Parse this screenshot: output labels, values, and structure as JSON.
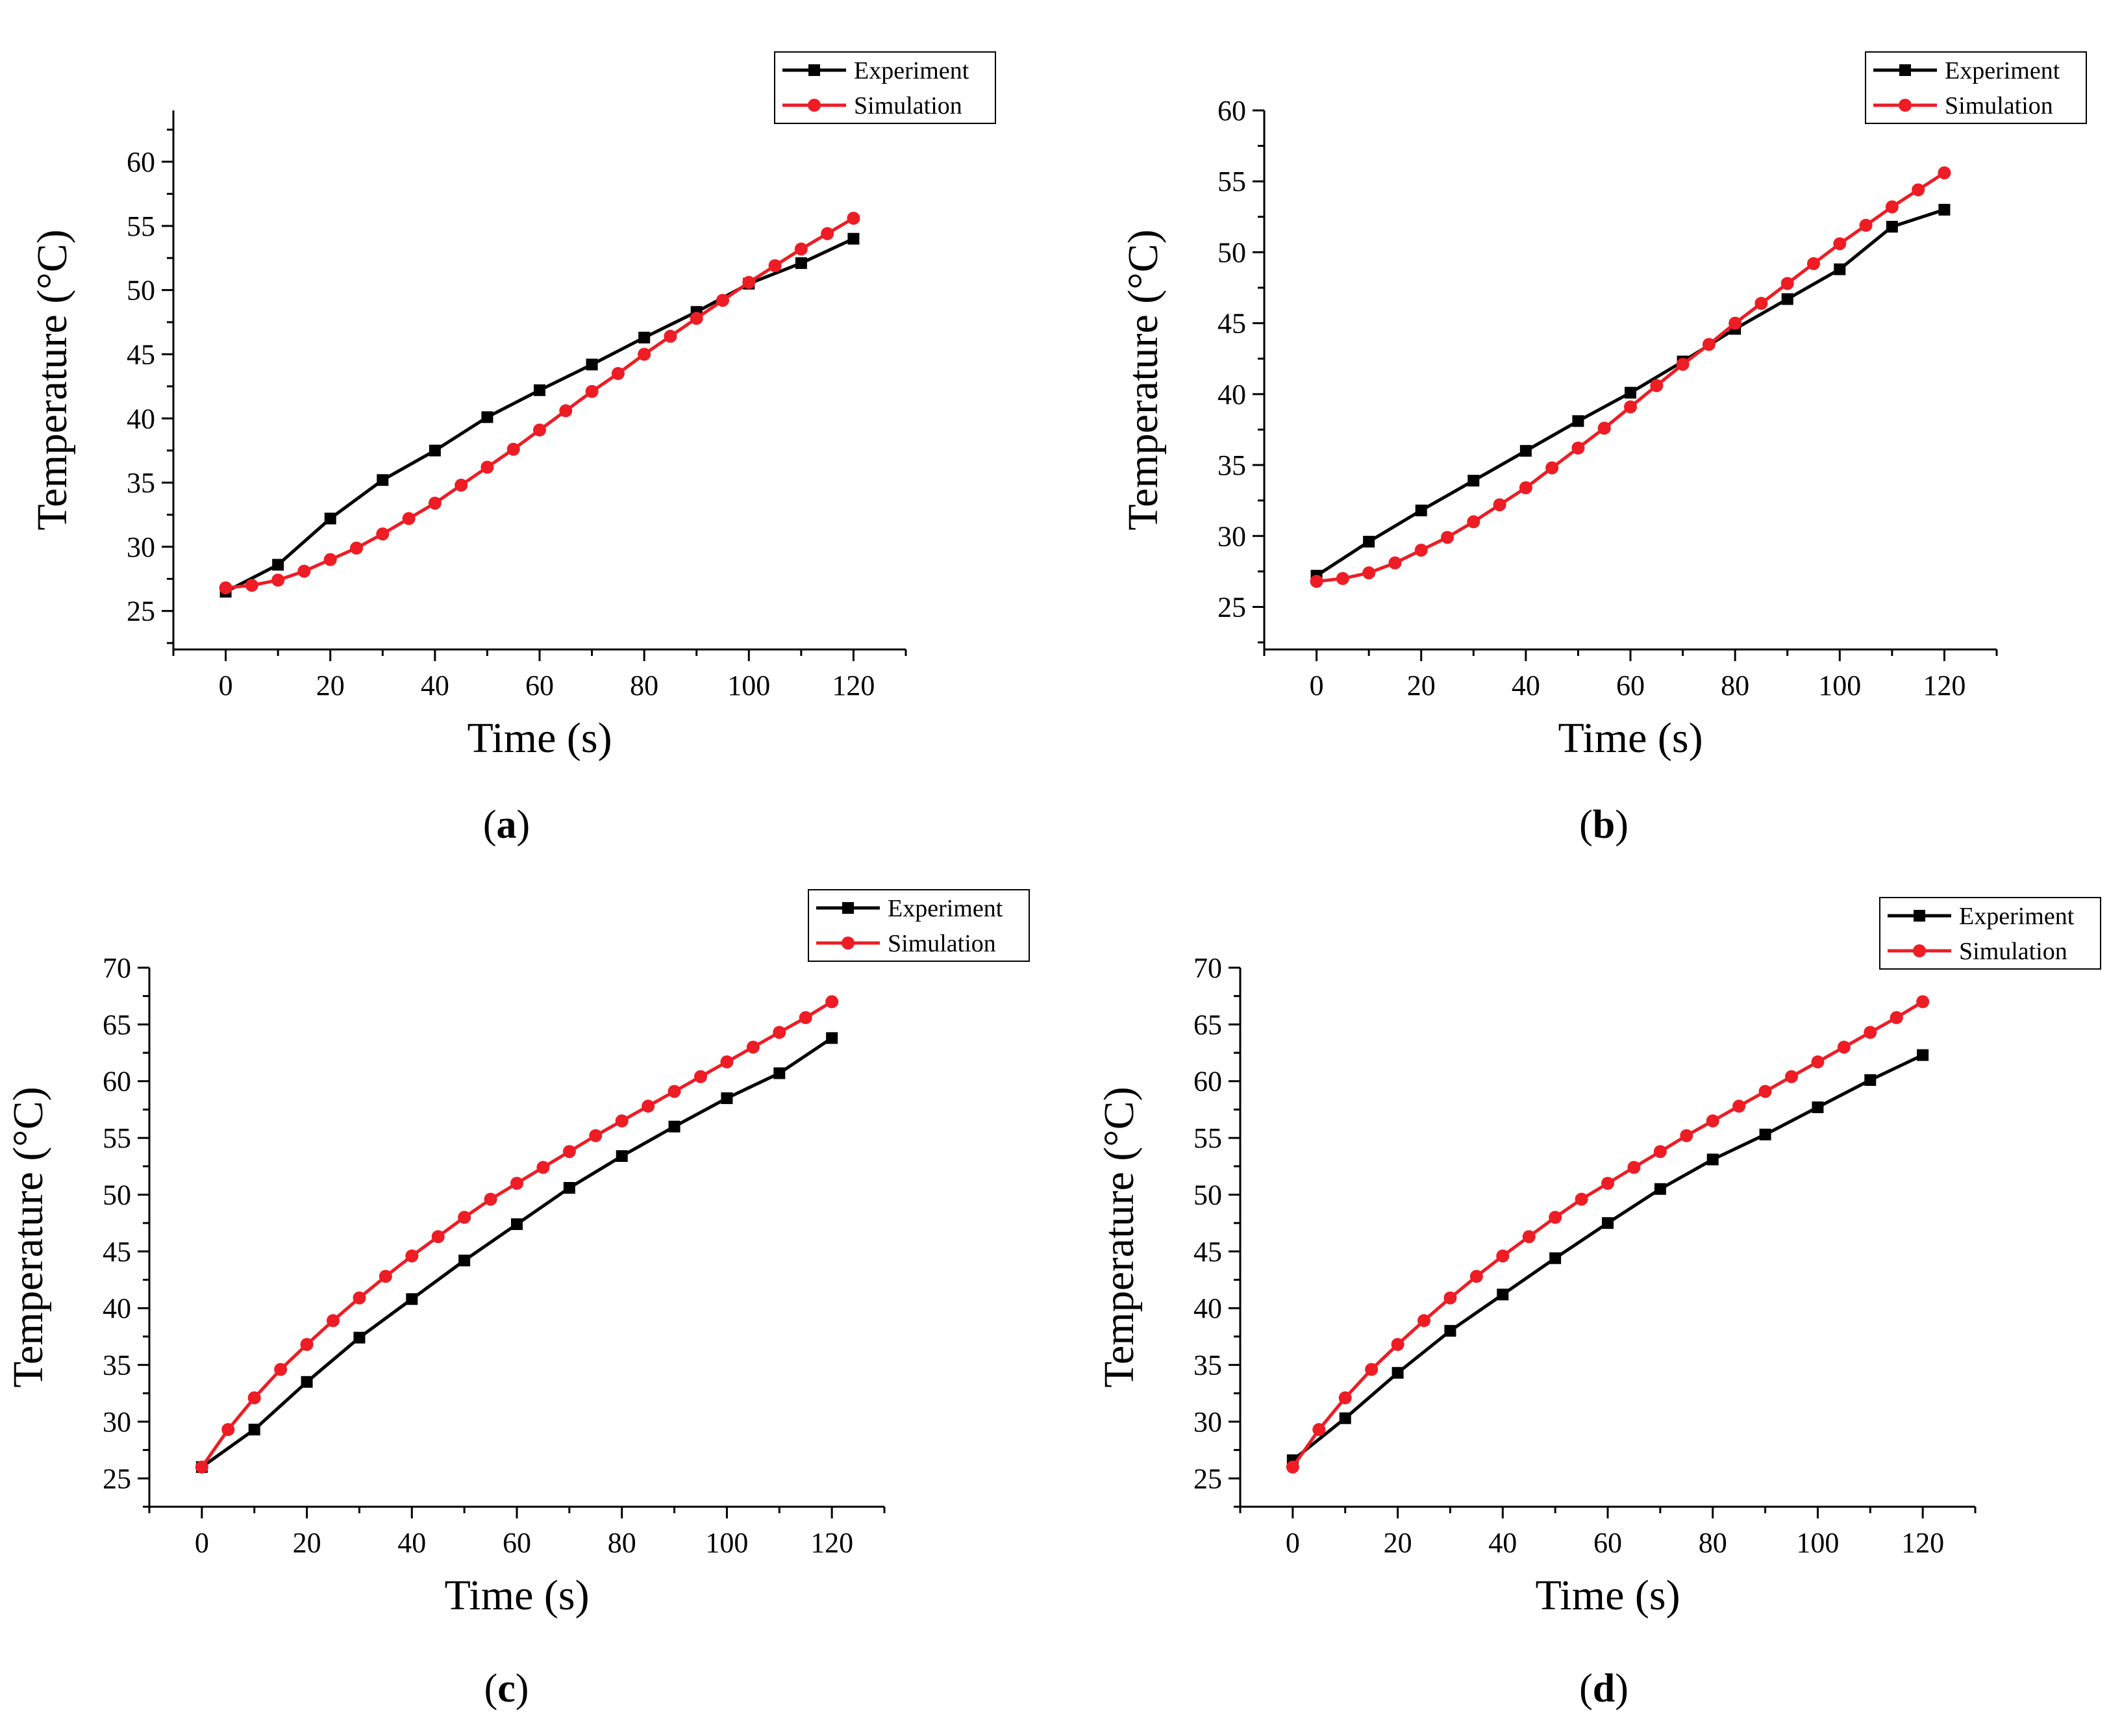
{
  "figure": {
    "description_labels": [
      "(a)",
      "(b)",
      "(c)",
      "(d)"
    ],
    "colors": {
      "experiment": "#000000",
      "simulation": "#ee1c24",
      "axis": "#000000",
      "background": "#ffffff"
    }
  },
  "chart_data": [
    {
      "id": "a",
      "type": "line",
      "caption": {
        "open": "(",
        "letter": "a",
        "close": ")"
      },
      "xlabel": "Time (s)",
      "ylabel": "Temperature (°C)",
      "xlim": [
        -10,
        130
      ],
      "ylim": [
        22,
        64
      ],
      "xticks": [
        0,
        20,
        40,
        60,
        80,
        100,
        120
      ],
      "yticks": [
        25,
        30,
        35,
        40,
        45,
        50,
        55,
        60
      ],
      "legend": {
        "position": "top-right",
        "entries": [
          "Experiment",
          "Simulation"
        ]
      },
      "series": [
        {
          "name": "Experiment",
          "marker": "square",
          "color": "#000000",
          "x": [
            0,
            10,
            20,
            30,
            40,
            50,
            60,
            70,
            80,
            90,
            100,
            110,
            120
          ],
          "y": [
            26.5,
            28.6,
            32.2,
            35.2,
            37.5,
            40.1,
            42.2,
            44.2,
            46.3,
            48.3,
            50.5,
            52.1,
            54.0
          ]
        },
        {
          "name": "Simulation",
          "marker": "circle",
          "color": "#ee1c24",
          "x": [
            0,
            5,
            10,
            15,
            20,
            25,
            30,
            35,
            40,
            45,
            50,
            55,
            60,
            65,
            70,
            75,
            80,
            85,
            90,
            95,
            100,
            105,
            110,
            115,
            120
          ],
          "y": [
            26.8,
            27.0,
            27.4,
            28.1,
            29.0,
            29.9,
            31.0,
            32.2,
            33.4,
            34.8,
            36.2,
            37.6,
            39.1,
            40.6,
            42.1,
            43.5,
            45.0,
            46.4,
            47.8,
            49.2,
            50.6,
            51.9,
            53.2,
            54.4,
            55.6
          ]
        }
      ]
    },
    {
      "id": "b",
      "type": "line",
      "caption": {
        "open": "(",
        "letter": "b",
        "close": ")"
      },
      "xlabel": "Time (s)",
      "ylabel": "Temperature (°C)",
      "xlim": [
        -10,
        130
      ],
      "ylim": [
        22,
        60
      ],
      "xticks": [
        0,
        20,
        40,
        60,
        80,
        100,
        120
      ],
      "yticks": [
        25,
        30,
        35,
        40,
        45,
        50,
        55,
        60
      ],
      "legend": {
        "position": "top-right",
        "entries": [
          "Experiment",
          "Simulation"
        ]
      },
      "series": [
        {
          "name": "Experiment",
          "marker": "square",
          "color": "#000000",
          "x": [
            0,
            10,
            20,
            30,
            40,
            50,
            60,
            70,
            80,
            90,
            100,
            110,
            120
          ],
          "y": [
            27.2,
            29.6,
            31.8,
            33.9,
            36.0,
            38.1,
            40.1,
            42.3,
            44.6,
            46.7,
            48.8,
            51.8,
            53.0
          ]
        },
        {
          "name": "Simulation",
          "marker": "circle",
          "color": "#ee1c24",
          "x": [
            0,
            5,
            10,
            15,
            20,
            25,
            30,
            35,
            40,
            45,
            50,
            55,
            60,
            65,
            70,
            75,
            80,
            85,
            90,
            95,
            100,
            105,
            110,
            115,
            120
          ],
          "y": [
            26.8,
            27.0,
            27.4,
            28.1,
            29.0,
            29.9,
            31.0,
            32.2,
            33.4,
            34.8,
            36.2,
            37.6,
            39.1,
            40.6,
            42.1,
            43.5,
            45.0,
            46.4,
            47.8,
            49.2,
            50.6,
            51.9,
            53.2,
            54.4,
            55.6
          ]
        }
      ]
    },
    {
      "id": "c",
      "type": "line",
      "caption": {
        "open": "(",
        "letter": "c",
        "close": ")"
      },
      "xlabel": "Time (s)",
      "ylabel": "Temperature (°C)",
      "xlim": [
        -10,
        130
      ],
      "ylim": [
        22.5,
        70
      ],
      "xticks": [
        0,
        20,
        40,
        60,
        80,
        100,
        120
      ],
      "yticks": [
        25,
        30,
        35,
        40,
        45,
        50,
        55,
        60,
        65,
        70
      ],
      "legend": {
        "position": "top-right",
        "entries": [
          "Experiment",
          "Simulation"
        ]
      },
      "series": [
        {
          "name": "Experiment",
          "marker": "square",
          "color": "#000000",
          "x": [
            0,
            10,
            20,
            30,
            40,
            50,
            60,
            70,
            80,
            90,
            100,
            110,
            120
          ],
          "y": [
            26.0,
            29.3,
            33.5,
            37.4,
            40.8,
            44.2,
            47.4,
            50.6,
            53.4,
            56.0,
            58.5,
            60.7,
            63.8
          ]
        },
        {
          "name": "Simulation",
          "marker": "circle",
          "color": "#ee1c24",
          "x": [
            0,
            5,
            10,
            15,
            20,
            25,
            30,
            35,
            40,
            45,
            50,
            55,
            60,
            65,
            70,
            75,
            80,
            85,
            90,
            95,
            100,
            105,
            110,
            115,
            120
          ],
          "y": [
            26.0,
            29.3,
            32.1,
            34.6,
            36.8,
            38.9,
            40.9,
            42.8,
            44.6,
            46.3,
            48.0,
            49.6,
            51.0,
            52.4,
            53.8,
            55.2,
            56.5,
            57.8,
            59.1,
            60.4,
            61.7,
            63.0,
            64.3,
            65.6,
            67.0
          ]
        }
      ]
    },
    {
      "id": "d",
      "type": "line",
      "caption": {
        "open": "(",
        "letter": "d",
        "close": ")"
      },
      "xlabel": "Time (s)",
      "ylabel": "Temperature (°C)",
      "xlim": [
        -10,
        130
      ],
      "ylim": [
        22.5,
        70
      ],
      "xticks": [
        0,
        20,
        40,
        60,
        80,
        100,
        120
      ],
      "yticks": [
        25,
        30,
        35,
        40,
        45,
        50,
        55,
        60,
        65,
        70
      ],
      "legend": {
        "position": "top-right",
        "entries": [
          "Experiment",
          "Simulation"
        ]
      },
      "series": [
        {
          "name": "Experiment",
          "marker": "square",
          "color": "#000000",
          "x": [
            0,
            10,
            20,
            30,
            40,
            50,
            60,
            70,
            80,
            90,
            100,
            110,
            120
          ],
          "y": [
            26.6,
            30.3,
            34.3,
            38.0,
            41.2,
            44.4,
            47.5,
            50.5,
            53.1,
            55.3,
            57.7,
            60.1,
            62.3
          ]
        },
        {
          "name": "Simulation",
          "marker": "circle",
          "color": "#ee1c24",
          "x": [
            0,
            5,
            10,
            15,
            20,
            25,
            30,
            35,
            40,
            45,
            50,
            55,
            60,
            65,
            70,
            75,
            80,
            85,
            90,
            95,
            100,
            105,
            110,
            115,
            120
          ],
          "y": [
            26.0,
            29.3,
            32.1,
            34.6,
            36.8,
            38.9,
            40.9,
            42.8,
            44.6,
            46.3,
            48.0,
            49.6,
            51.0,
            52.4,
            53.8,
            55.2,
            56.5,
            57.8,
            59.1,
            60.4,
            61.7,
            63.0,
            64.3,
            65.6,
            67.0
          ]
        }
      ]
    }
  ]
}
